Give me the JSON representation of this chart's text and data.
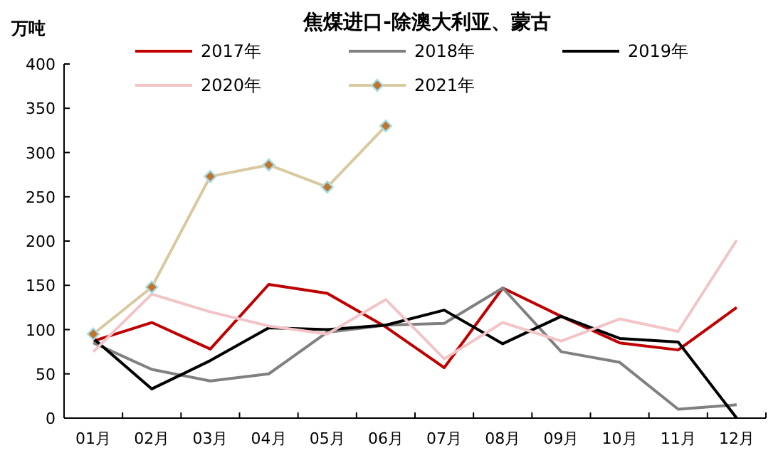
{
  "chart_data": {
    "type": "line",
    "title": "焦煤进口-除澳大利亚、蒙古",
    "ylabel": "万吨",
    "categories": [
      "01月",
      "02月",
      "03月",
      "04月",
      "05月",
      "06月",
      "07月",
      "08月",
      "09月",
      "10月",
      "11月",
      "12月"
    ],
    "ylim": [
      0,
      400
    ],
    "yticks": [
      0,
      50,
      100,
      150,
      200,
      250,
      300,
      350,
      400
    ],
    "grid": false,
    "legend": "top",
    "series": [
      {
        "name": "2017年",
        "color": "#c00000",
        "marker": "none",
        "values": [
          87,
          108,
          78,
          151,
          141,
          103,
          57,
          147,
          115,
          85,
          77,
          125
        ]
      },
      {
        "name": "2018年",
        "color": "#808080",
        "marker": "none",
        "values": [
          85,
          55,
          42,
          50,
          97,
          105,
          107,
          147,
          75,
          63,
          10,
          15
        ]
      },
      {
        "name": "2019年",
        "color": "#000000",
        "marker": "none",
        "values": [
          90,
          33,
          65,
          102,
          100,
          105,
          122,
          84,
          115,
          90,
          86,
          0
        ]
      },
      {
        "name": "2020年",
        "color": "#f2c4c8",
        "marker": "none",
        "values": [
          75,
          140,
          120,
          104,
          95,
          134,
          67,
          108,
          87,
          112,
          98,
          201
        ]
      },
      {
        "name": "2021年",
        "color": "#d9c9a0",
        "marker": "diamond",
        "values": [
          95,
          148,
          273,
          286,
          261,
          330,
          null,
          null,
          null,
          null,
          null,
          null
        ]
      }
    ]
  }
}
